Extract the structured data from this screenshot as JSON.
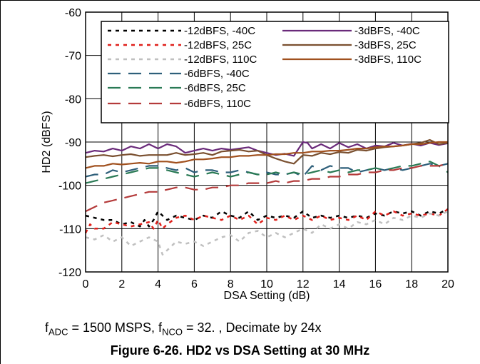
{
  "chart_data": {
    "type": "line",
    "xlabel": "DSA Setting (dB)",
    "ylabel": "HD2 (dBFS)",
    "xlim": [
      0,
      20
    ],
    "ylim": [
      -120,
      -60
    ],
    "xticks": [
      0,
      2,
      4,
      6,
      8,
      10,
      12,
      14,
      16,
      18,
      20
    ],
    "yticks": [
      -60,
      -70,
      -80,
      -90,
      -100,
      -110,
      -120
    ],
    "grid": true,
    "legend_position": "top",
    "series": [
      {
        "name": "-12dBFS, -40C",
        "color": "#000000",
        "dash": "dotted",
        "x": [
          0,
          0.5,
          1,
          1.5,
          2,
          2.5,
          3,
          3.25,
          3.5,
          3.75,
          4,
          4.5,
          5,
          5.5,
          6,
          6.5,
          7,
          7.5,
          8,
          8.5,
          9,
          9.5,
          10,
          10.5,
          11,
          11.5,
          12,
          12.5,
          13,
          13.5,
          14,
          14.5,
          15,
          15.5,
          16,
          16.5,
          17,
          17.5,
          18,
          18.5,
          19,
          19.5,
          20
        ],
        "y": [
          -107,
          -107.5,
          -108,
          -108,
          -109,
          -108.5,
          -109.5,
          -108,
          -109.5,
          -108,
          -106,
          -108,
          -107,
          -107.5,
          -108,
          -107,
          -107.5,
          -106,
          -107,
          -107.5,
          -106,
          -108,
          -107,
          -107.5,
          -107,
          -107.5,
          -106,
          -107.5,
          -107,
          -107.5,
          -107,
          -107.5,
          -107,
          -107.5,
          -106.5,
          -107,
          -106,
          -106.5,
          -106,
          -107,
          -106,
          -106.5,
          -105.5
        ]
      },
      {
        "name": "-12dBFS, 25C",
        "color": "#e0201b",
        "dash": "dotted",
        "x": [
          0,
          0.25,
          0.5,
          1,
          1.5,
          2,
          2.5,
          3,
          3.5,
          3.75,
          4,
          4.25,
          4.5,
          5,
          5.5,
          6,
          6.5,
          7,
          7.5,
          8,
          8.5,
          9,
          9.5,
          10,
          10.5,
          11,
          11.5,
          12,
          12.5,
          13,
          13.5,
          14,
          14.5,
          15,
          15.5,
          16,
          16.5,
          17,
          17.5,
          18,
          18.5,
          19,
          19.5,
          20
        ],
        "y": [
          -111,
          -109,
          -110,
          -110,
          -108.5,
          -109,
          -109.5,
          -109,
          -108.5,
          -110,
          -108,
          -110,
          -109,
          -107.5,
          -107,
          -108,
          -107,
          -107.5,
          -108,
          -107,
          -108,
          -107,
          -109,
          -107.5,
          -108,
          -107,
          -108,
          -107,
          -108,
          -107,
          -108,
          -107.5,
          -108,
          -107,
          -108,
          -106,
          -107,
          -106,
          -107,
          -106.5,
          -107,
          -106.5,
          -107,
          -105.5
        ]
      },
      {
        "name": "-12dBFS, 110C",
        "color": "#c0c0c0",
        "dash": "dotted",
        "x": [
          0,
          0.5,
          1,
          1.5,
          2,
          2.5,
          3,
          3.5,
          4,
          4.25,
          4.5,
          5,
          5.5,
          6,
          6.5,
          7,
          7.5,
          8,
          8.5,
          9,
          9.5,
          10,
          10.5,
          11,
          11.5,
          12,
          12.5,
          13,
          13.5,
          14,
          14.5,
          15,
          15.5,
          16,
          16.5,
          17,
          17.5,
          18,
          18.5,
          19,
          19.5,
          20
        ],
        "y": [
          -112,
          -112.5,
          -111.5,
          -113,
          -112,
          -114,
          -113,
          -112,
          -113,
          -116,
          -115,
          -113,
          -113.5,
          -113,
          -114,
          -113,
          -112,
          -111.5,
          -113,
          -111,
          -110.5,
          -112,
          -111,
          -112,
          -111,
          -110,
          -111,
          -109,
          -110,
          -109,
          -110,
          -108.5,
          -109,
          -108,
          -109,
          -107.5,
          -108,
          -107,
          -107.5,
          -106.5,
          -107,
          -106
        ]
      },
      {
        "name": "-6dBFS, -40C",
        "color": "#2e5f7a",
        "dash": "long-dash",
        "x": [
          0,
          0.5,
          1,
          1.5,
          2,
          2.5,
          3,
          3.5,
          4,
          4.5,
          5,
          5.5,
          6,
          6.5,
          7,
          7.5,
          8,
          8.5,
          9,
          9.5,
          10,
          10.5,
          11,
          11.5,
          12,
          12.5,
          13,
          13.5,
          14,
          14.5,
          15,
          15.5,
          16,
          16.5,
          17,
          17.5,
          18,
          18.5,
          19,
          19.5,
          20
        ],
        "y": [
          -98,
          -97.5,
          -97.5,
          -96.5,
          -97,
          -96.5,
          -96,
          -95.5,
          -95.5,
          -96,
          -96.5,
          -96,
          -97,
          -96.5,
          -96.5,
          -97,
          -97,
          -96.5,
          -97,
          -97.5,
          -97,
          -97.5,
          -97.5,
          -97,
          -98,
          -95.5,
          -96.5,
          -95.5,
          -96,
          -96,
          -97,
          -96.5,
          -96,
          -96.5,
          -96,
          -96.5,
          -96,
          -95.5,
          -95,
          -95.5,
          -95
        ]
      },
      {
        "name": "-6dBFS, 25C",
        "color": "#2a7a55",
        "dash": "long-dash",
        "x": [
          0,
          0.5,
          1,
          1.5,
          2,
          2.5,
          3,
          3.5,
          4,
          4.5,
          5,
          5.5,
          6,
          6.5,
          7,
          7.5,
          8,
          8.5,
          9,
          9.5,
          10,
          10.5,
          11,
          11.5,
          12,
          12.5,
          13,
          13.5,
          14,
          14.5,
          15,
          15.5,
          16,
          16.5,
          17,
          17.5,
          18,
          18.5,
          19,
          19.5,
          20
        ],
        "y": [
          -99.5,
          -99,
          -98.5,
          -98,
          -97.5,
          -97,
          -96.5,
          -96,
          -96,
          -96.5,
          -97,
          -97.5,
          -98,
          -97.5,
          -97,
          -97.5,
          -98,
          -97.5,
          -97,
          -97.5,
          -97.5,
          -97,
          -97.5,
          -97,
          -97.5,
          -97,
          -96.5,
          -97,
          -96.5,
          -97,
          -96.5,
          -96.5,
          -96,
          -96.5,
          -96,
          -95.5,
          -95.5,
          -95,
          -94.5,
          -95.5,
          -97
        ]
      },
      {
        "name": "-6dBFS, 110C",
        "color": "#b43a3a",
        "dash": "long-dash",
        "x": [
          0,
          0.5,
          1,
          1.5,
          2,
          2.5,
          3,
          3.5,
          4,
          4.5,
          5,
          5.5,
          6,
          6.5,
          7,
          7.5,
          8,
          8.5,
          9,
          9.5,
          10,
          10.5,
          11,
          11.5,
          12,
          12.5,
          13,
          13.5,
          14,
          14.5,
          15,
          15.5,
          16,
          16.5,
          17,
          17.5,
          18,
          18.5,
          19,
          19.5,
          20
        ],
        "y": [
          -106,
          -105,
          -104,
          -103.5,
          -103,
          -102.5,
          -102,
          -101.5,
          -101.5,
          -101,
          -100.5,
          -100.5,
          -101,
          -101,
          -100.5,
          -100.5,
          -100,
          -100,
          -99.5,
          -99.5,
          -99.5,
          -99,
          -99.5,
          -99,
          -99,
          -98.5,
          -98.5,
          -98,
          -98,
          -97.5,
          -97.5,
          -97,
          -97,
          -96.5,
          -96.5,
          -96,
          -96,
          -95.5,
          -95.5,
          -95.5,
          -95
        ]
      },
      {
        "name": "-3dBFS, -40C",
        "color": "#6a2a7a",
        "dash": "solid",
        "x": [
          0,
          0.5,
          1,
          1.5,
          2,
          2.5,
          3,
          3.5,
          4,
          4.5,
          5,
          5.5,
          6,
          6.5,
          7,
          7.5,
          8,
          8.5,
          9,
          9.5,
          10,
          10.5,
          11,
          11.5,
          12,
          12.25,
          12.5,
          13,
          13.5,
          14,
          14.5,
          15,
          15.5,
          16,
          16.5,
          17,
          17.5,
          18,
          18.5,
          19,
          19.5,
          20
        ],
        "y": [
          -92.5,
          -92,
          -92.2,
          -91.5,
          -92,
          -91,
          -91.5,
          -90.5,
          -91.5,
          -90.5,
          -91,
          -92.5,
          -92,
          -91.5,
          -92,
          -91.5,
          -91.8,
          -91.5,
          -91.2,
          -92,
          -92.5,
          -93,
          -92.7,
          -93.2,
          -90,
          -90.2,
          -91.5,
          -90.5,
          -91.5,
          -90.2,
          -91.2,
          -90.5,
          -91.5,
          -90.8,
          -91,
          -90.2,
          -90.8,
          -90.4,
          -90.8,
          -90.2,
          -90.7,
          -90.3
        ]
      },
      {
        "name": "-3dBFS, 25C",
        "color": "#7a5030",
        "dash": "solid",
        "x": [
          0,
          0.5,
          1,
          1.5,
          2,
          2.5,
          3,
          3.5,
          4,
          4.5,
          5,
          5.5,
          6,
          6.5,
          7,
          7.5,
          8,
          8.5,
          9,
          9.5,
          10,
          10.5,
          11,
          11.5,
          12,
          12.5,
          13,
          13.5,
          14,
          14.5,
          15,
          15.5,
          16,
          16.5,
          17,
          17.5,
          18,
          18.5,
          19,
          19.5,
          20
        ],
        "y": [
          -93.5,
          -93.2,
          -93,
          -93.3,
          -93,
          -92.8,
          -93.2,
          -93,
          -93,
          -93,
          -92.5,
          -93,
          -92.8,
          -92.5,
          -93,
          -92.2,
          -92,
          -91.8,
          -92.2,
          -92,
          -93,
          -93.8,
          -94.5,
          -95,
          -93,
          -93.2,
          -92.5,
          -92.8,
          -92.3,
          -92.5,
          -91.8,
          -92,
          -91.5,
          -91.2,
          -91,
          -90.8,
          -90.5,
          -90.2,
          -89.5,
          -90.5,
          -90.2
        ]
      },
      {
        "name": "-3dBFS, 110C",
        "color": "#a0501e",
        "dash": "solid",
        "x": [
          0,
          0.5,
          1,
          1.5,
          2,
          2.5,
          3,
          3.5,
          4,
          4.5,
          5,
          5.5,
          6,
          6.5,
          7,
          7.5,
          8,
          8.5,
          9,
          9.5,
          10,
          10.5,
          11,
          11.5,
          12,
          12.5,
          13,
          13.5,
          14,
          14.5,
          15,
          15.5,
          16,
          16.5,
          17,
          17.5,
          18,
          18.5,
          19,
          19.5,
          20
        ],
        "y": [
          -96,
          -95.5,
          -95.5,
          -95,
          -95.2,
          -95,
          -94.8,
          -95,
          -94.5,
          -94.5,
          -94.8,
          -94.5,
          -94,
          -94,
          -93.8,
          -93.5,
          -93.5,
          -93.2,
          -93.2,
          -93,
          -93,
          -92.8,
          -92.8,
          -92.5,
          -92.5,
          -92.2,
          -92.2,
          -92,
          -92,
          -91.8,
          -91.5,
          -91.5,
          -91.2,
          -91,
          -91,
          -90.8,
          -90.5,
          -90.5,
          -90.2,
          -90,
          -90
        ]
      }
    ]
  },
  "conditions": {
    "f1": "f",
    "f1_sub": "ADC",
    "adc_rate": " = 1500 MSPS, ",
    "f2": "f",
    "f2_sub": "NCO",
    "nco_rest": " = 32. , Decimate by 24x"
  },
  "figure_caption": "Figure 6-26. HD2 vs DSA Setting at 30 MHz"
}
